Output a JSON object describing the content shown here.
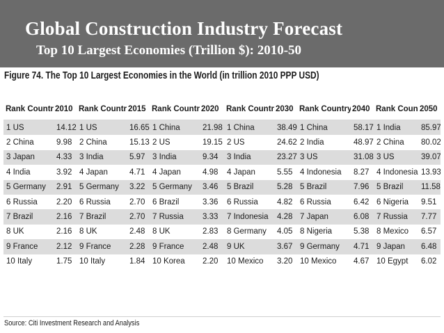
{
  "slide": {
    "title": "Global Construction Industry Forecast",
    "subtitle": "Top 10 Largest Economies (Trillion $): 2010-50"
  },
  "figure": {
    "caption": "Figure 74. The Top 10 Largest Economies in the World (in trillion 2010 PPP USD)",
    "source": "Source: Citi Investment Research and Analysis"
  },
  "table": {
    "headers": [
      {
        "rank_country": "Rank Country",
        "year": "2010"
      },
      {
        "rank_country": "Rank Country",
        "year": "2015"
      },
      {
        "rank_country": "Rank Country",
        "year": "2020"
      },
      {
        "rank_country": "Rank Country",
        "year": "2030"
      },
      {
        "rank_country": "Rank Country",
        "year": "2040"
      },
      {
        "rank_country": "Rank Country",
        "year": "2050"
      }
    ],
    "rows": [
      [
        [
          "1 US",
          "14.12"
        ],
        [
          "1 US",
          "16.65"
        ],
        [
          "1 China",
          "21.98"
        ],
        [
          "1 China",
          "38.49"
        ],
        [
          "1 China",
          "58.17"
        ],
        [
          "1 India",
          "85.97"
        ]
      ],
      [
        [
          "2 China",
          "9.98"
        ],
        [
          "2 China",
          "15.13"
        ],
        [
          "2 US",
          "19.15"
        ],
        [
          "2 US",
          "24.62"
        ],
        [
          "2 India",
          "48.97"
        ],
        [
          "2 China",
          "80.02"
        ]
      ],
      [
        [
          "3 Japan",
          "4.33"
        ],
        [
          "3 India",
          "5.97"
        ],
        [
          "3 India",
          "9.34"
        ],
        [
          "3 India",
          "23.27"
        ],
        [
          "3 US",
          "31.08"
        ],
        [
          "3 US",
          "39.07"
        ]
      ],
      [
        [
          "4 India",
          "3.92"
        ],
        [
          "4 Japan",
          "4.71"
        ],
        [
          "4 Japan",
          "4.98"
        ],
        [
          "4 Japan",
          "5.55"
        ],
        [
          "4 Indonesia",
          "8.27"
        ],
        [
          "4 Indonesia",
          "13.93"
        ]
      ],
      [
        [
          "5 Germany",
          "2.91"
        ],
        [
          "5 Germany",
          "3.22"
        ],
        [
          "5 Germany",
          "3.46"
        ],
        [
          "5 Brazil",
          "5.28"
        ],
        [
          "5 Brazil",
          "7.96"
        ],
        [
          "5 Brazil",
          "11.58"
        ]
      ],
      [
        [
          "6 Russia",
          "2.20"
        ],
        [
          "6 Russia",
          "2.70"
        ],
        [
          "6 Brazil",
          "3.36"
        ],
        [
          "6 Russia",
          "4.82"
        ],
        [
          "6 Russia",
          "6.42"
        ],
        [
          "6 Nigeria",
          "9.51"
        ]
      ],
      [
        [
          "7 Brazil",
          "2.16"
        ],
        [
          "7 Brazil",
          "2.70"
        ],
        [
          "7 Russia",
          "3.33"
        ],
        [
          "7 Indonesia",
          "4.28"
        ],
        [
          "7 Japan",
          "6.08"
        ],
        [
          "7 Russia",
          "7.77"
        ]
      ],
      [
        [
          "8 UK",
          "2.16"
        ],
        [
          "8 UK",
          "2.48"
        ],
        [
          "8 UK",
          "2.83"
        ],
        [
          "8 Germany",
          "4.05"
        ],
        [
          "8 Nigeria",
          "5.38"
        ],
        [
          "8 Mexico",
          "6.57"
        ]
      ],
      [
        [
          "9 France",
          "2.12"
        ],
        [
          "9 France",
          "2.28"
        ],
        [
          "9 France",
          "2.48"
        ],
        [
          "9 UK",
          "3.67"
        ],
        [
          "9 Germany",
          "4.71"
        ],
        [
          "9 Japan",
          "6.48"
        ]
      ],
      [
        [
          "10 Italy",
          "1.75"
        ],
        [
          "10 Italy",
          "1.84"
        ],
        [
          "10 Korea",
          "2.20"
        ],
        [
          "10 Mexico",
          "3.20"
        ],
        [
          "10 Mexico",
          "4.67"
        ],
        [
          "10 Egypt",
          "6.02"
        ]
      ]
    ]
  }
}
